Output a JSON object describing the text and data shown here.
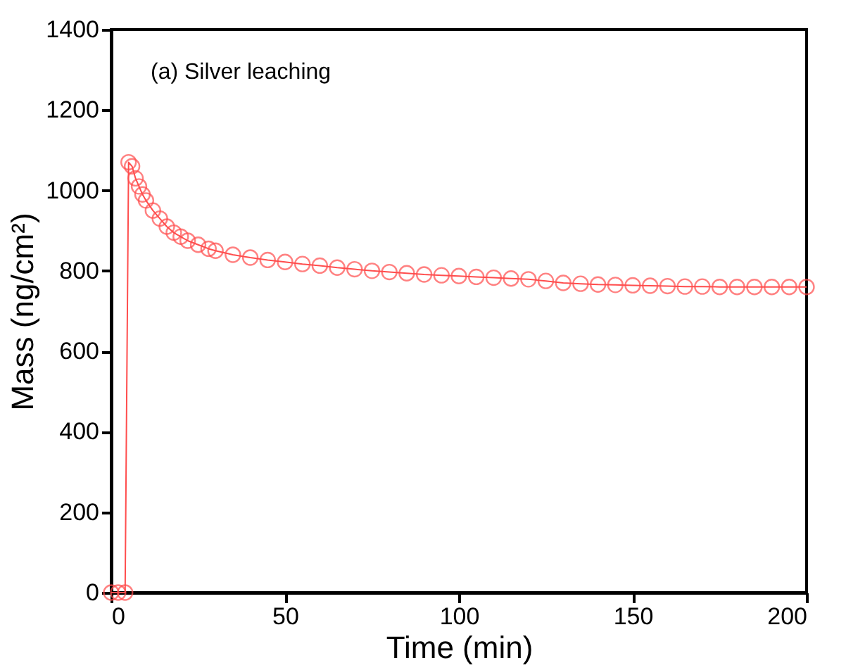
{
  "chart_data": {
    "type": "line",
    "xlabel": "Time (min)",
    "ylabel": "Mass (ng/cm²)",
    "annotations": [
      "(a) Silver leaching"
    ],
    "xlim": [
      0,
      200
    ],
    "xticks": [
      0,
      50,
      100,
      150,
      200
    ],
    "ylim": [
      0,
      1400
    ],
    "yticks": [
      0,
      200,
      400,
      600,
      800,
      1000,
      1200,
      1400
    ],
    "grid": false,
    "legend": false,
    "marker": "circle",
    "line_style": "solid",
    "series": [
      {
        "color": "#ff4d4d",
        "x": [
          0,
          2,
          4,
          5,
          6,
          7,
          8,
          9,
          10,
          12,
          14,
          16,
          18,
          20,
          22,
          25,
          28,
          30,
          35,
          40,
          45,
          50,
          55,
          60,
          65,
          70,
          75,
          80,
          85,
          90,
          95,
          100,
          105,
          110,
          115,
          120,
          125,
          130,
          135,
          140,
          145,
          150,
          155,
          160,
          165,
          170,
          175,
          180,
          185,
          190,
          195,
          200
        ],
        "values": [
          0,
          0,
          0,
          1070,
          1060,
          1030,
          1010,
          990,
          975,
          950,
          930,
          910,
          895,
          885,
          875,
          865,
          855,
          850,
          840,
          833,
          827,
          822,
          817,
          813,
          808,
          804,
          800,
          797,
          794,
          791,
          789,
          787,
          785,
          783,
          781,
          779,
          775,
          770,
          768,
          766,
          765,
          764,
          763,
          762,
          761,
          761,
          760,
          760,
          760,
          760,
          760,
          760
        ]
      }
    ]
  }
}
